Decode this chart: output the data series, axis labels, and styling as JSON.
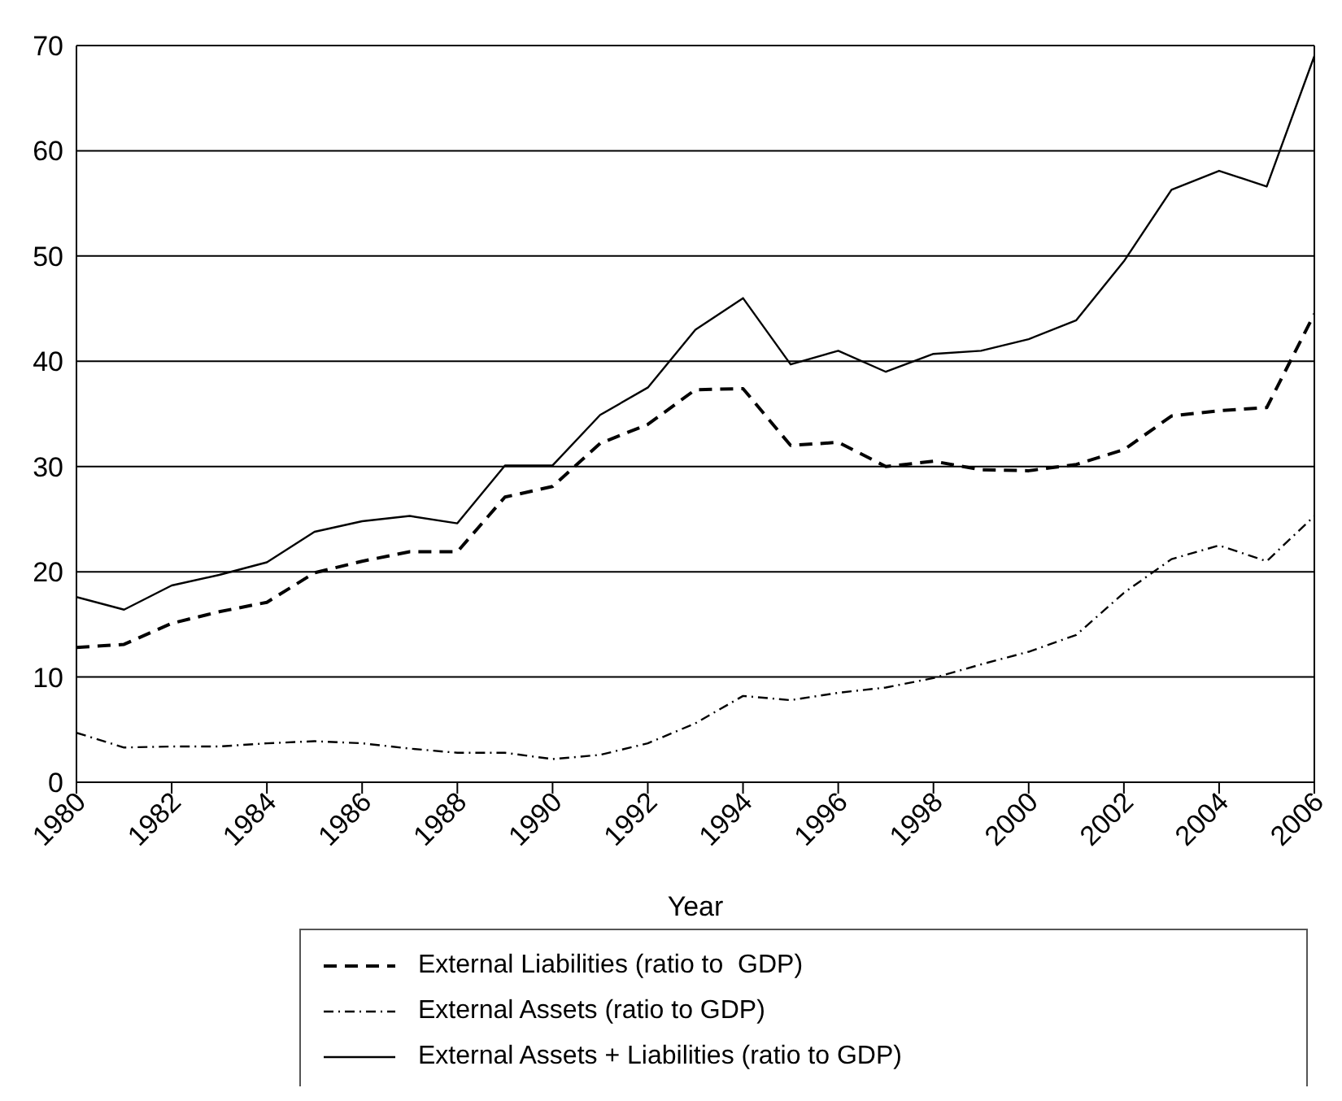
{
  "chart_data": {
    "type": "line",
    "xlabel": "Year",
    "x": [
      1980,
      1981,
      1982,
      1983,
      1984,
      1985,
      1986,
      1987,
      1988,
      1989,
      1990,
      1991,
      1992,
      1993,
      1994,
      1995,
      1996,
      1997,
      1998,
      1999,
      2000,
      2001,
      2002,
      2003,
      2004,
      2005,
      2006
    ],
    "series": [
      {
        "name": "External Liabilities (ratio to  GDP)",
        "color": "#000000",
        "line_style": "dashed",
        "values": [
          12.8,
          13.1,
          15.1,
          16.2,
          17.1,
          19.9,
          21,
          21.9,
          21.9,
          27.1,
          28.1,
          32.2,
          34,
          37.3,
          37.4,
          32,
          32.3,
          30,
          30.5,
          29.7,
          29.6,
          30.2,
          31.6,
          34.8,
          35.3,
          35.6,
          44.5
        ]
      },
      {
        "name": "External Assets (ratio to GDP)",
        "color": "#000000",
        "line_style": "dashdot",
        "values": [
          4.7,
          3.3,
          3.4,
          3.4,
          3.7,
          3.9,
          3.7,
          3.2,
          2.8,
          2.8,
          2.2,
          2.6,
          3.7,
          5.6,
          8.2,
          7.8,
          8.5,
          9,
          9.9,
          11.2,
          12.4,
          14,
          18,
          21.2,
          22.5,
          21,
          25.3
        ]
      },
      {
        "name": "External Assets + Liabilities (ratio to GDP)",
        "color": "#000000",
        "line_style": "solid",
        "values": [
          17.6,
          16.4,
          18.7,
          19.7,
          20.9,
          23.8,
          24.8,
          25.3,
          24.6,
          30.1,
          30.1,
          34.9,
          37.5,
          43,
          46,
          39.7,
          41,
          39,
          40.7,
          41,
          42.1,
          43.9,
          49.5,
          56.3,
          58.1,
          56.6,
          69
        ]
      }
    ],
    "xlim": [
      1980,
      2006
    ],
    "xticks": [
      1980,
      1982,
      1984,
      1986,
      1988,
      1990,
      1992,
      1994,
      1996,
      1998,
      2000,
      2002,
      2004,
      2006
    ],
    "ylim": [
      0,
      70
    ],
    "yticks": [
      0,
      10,
      20,
      30,
      40,
      50,
      60,
      70
    ],
    "grid": "y",
    "legend": "bottom",
    "marker": "none"
  }
}
